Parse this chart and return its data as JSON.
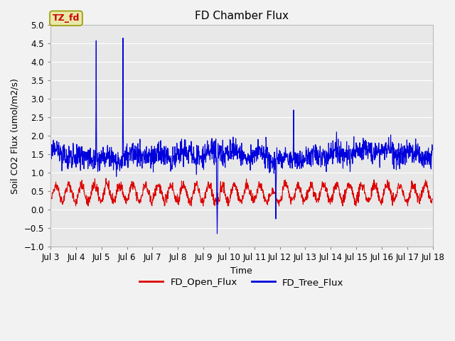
{
  "title": "FD Chamber Flux",
  "ylabel": "Soil CO2 Flux (umol/m2/s)",
  "xlabel": "Time",
  "ylim": [
    -1.0,
    5.0
  ],
  "yticks": [
    -1.0,
    -0.5,
    0.0,
    0.5,
    1.0,
    1.5,
    2.0,
    2.5,
    3.0,
    3.5,
    4.0,
    4.5,
    5.0
  ],
  "x_start_day": 3,
  "x_end_day": 18,
  "x_tick_days": [
    3,
    4,
    5,
    6,
    7,
    8,
    9,
    10,
    11,
    12,
    13,
    14,
    15,
    16,
    17,
    18
  ],
  "x_tick_labels": [
    "Jul 3",
    "Jul 4",
    "Jul 5",
    "Jul 6",
    "Jul 7",
    "Jul 8",
    "Jul 9",
    "Jul 10",
    "Jul 11",
    "Jul 12",
    "Jul 13",
    "Jul 14",
    "Jul 15",
    "Jul 16",
    "Jul 17",
    "Jul 18"
  ],
  "legend_labels": [
    "FD_Open_Flux",
    "FD_Tree_Flux"
  ],
  "open_color": "#dd0000",
  "tree_color": "#0000dd",
  "fig_bg_color": "#f2f2f2",
  "plot_bg_color": "#e8e8e8",
  "grid_color": "#ffffff",
  "annotation_text": "TZ_fd",
  "annotation_bg": "#e8e8aa",
  "annotation_fg": "#cc0000",
  "annotation_edge": "#999900",
  "seed": 42,
  "n_points_per_day": 96,
  "n_days": 15
}
